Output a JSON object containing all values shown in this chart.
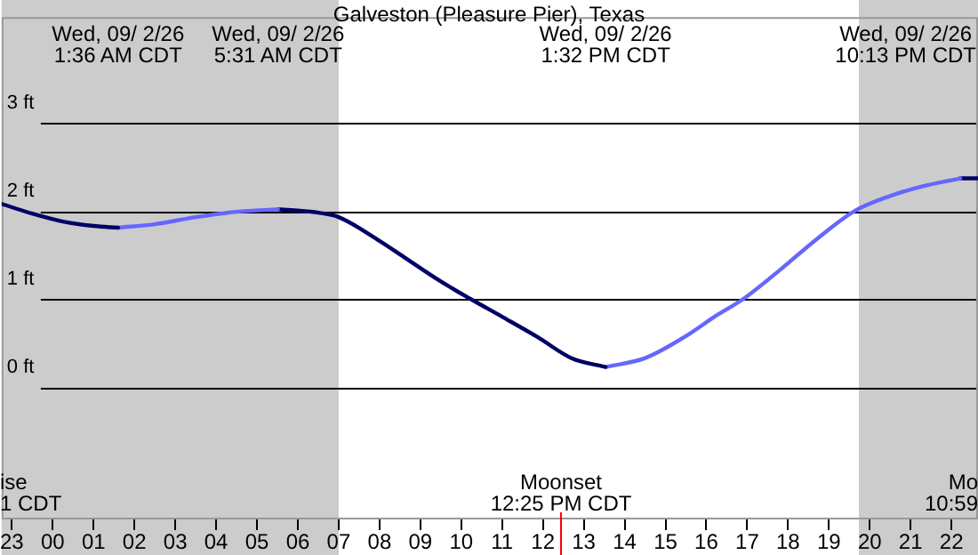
{
  "chart_data": {
    "type": "line",
    "title": "Galveston (Pleasure Pier), Texas",
    "xlim": [
      "--09-01T22:45",
      "--09-02T22:39"
    ],
    "ylim": [
      -1.5,
      4.2
    ],
    "xticks": [
      {
        "value": "--09-01T23:00",
        "label": "23"
      },
      {
        "value": "--09-02T00:00",
        "label": "00"
      },
      {
        "value": "--09-02T01:00",
        "label": "01"
      },
      {
        "value": "--09-02T02:00",
        "label": "02"
      },
      {
        "value": "--09-02T03:00",
        "label": "03"
      },
      {
        "value": "--09-02T04:00",
        "label": "04"
      },
      {
        "value": "--09-02T05:00",
        "label": "05"
      },
      {
        "value": "--09-02T06:00",
        "label": "06"
      },
      {
        "value": "--09-02T07:00",
        "label": "07"
      },
      {
        "value": "--09-02T08:00",
        "label": "08"
      },
      {
        "value": "--09-02T09:00",
        "label": "09"
      },
      {
        "value": "--09-02T10:00",
        "label": "10"
      },
      {
        "value": "--09-02T11:00",
        "label": "11"
      },
      {
        "value": "--09-02T12:00",
        "label": "12"
      },
      {
        "value": "--09-02T13:00",
        "label": "13"
      },
      {
        "value": "--09-02T14:00",
        "label": "14"
      },
      {
        "value": "--09-02T15:00",
        "label": "15"
      },
      {
        "value": "--09-02T16:00",
        "label": "16"
      },
      {
        "value": "--09-02T17:00",
        "label": "17"
      },
      {
        "value": "--09-02T18:00",
        "label": "18"
      },
      {
        "value": "--09-02T19:00",
        "label": "19"
      },
      {
        "value": "--09-02T20:00",
        "label": "20"
      },
      {
        "value": "--09-02T21:00",
        "label": "21"
      },
      {
        "value": "--09-02T22:00",
        "label": "22"
      }
    ],
    "yticks": [
      {
        "value": 0,
        "label": "0 ft"
      },
      {
        "value": 1,
        "label": "1 ft"
      },
      {
        "value": 2,
        "label": "2 ft"
      },
      {
        "value": 3,
        "label": "3 ft"
      }
    ],
    "grid": "y",
    "legend": false,
    "marker": "none",
    "line_style": "solid",
    "series": [
      {
        "color": "#000066",
        "x": [
          "--09-01T22:45",
          "--09-01T23:30",
          "--09-02T00:15",
          "--09-02T01:00",
          "--09-02T01:36"
        ],
        "values": [
          2.08,
          1.97,
          1.88,
          1.83,
          1.81
        ]
      },
      {
        "color": "#6666ff",
        "x": [
          "--09-02T01:36",
          "--09-02T02:30",
          "--09-02T03:30",
          "--09-02T04:30",
          "--09-02T05:31"
        ],
        "values": [
          1.81,
          1.85,
          1.93,
          1.99,
          2.02
        ]
      },
      {
        "color": "#000066",
        "x": [
          "--09-02T05:31",
          "--09-02T06:30",
          "--09-02T07:00",
          "--09-02T08:00",
          "--09-02T08:39",
          "--09-02T09:30",
          "--09-02T10:14",
          "--09-02T11:00",
          "--09-02T11:52",
          "--09-02T12:42",
          "--09-02T13:32"
        ],
        "values": [
          2.02,
          1.98,
          1.93,
          1.66,
          1.46,
          1.2,
          1.0,
          0.8,
          0.57,
          0.33,
          0.23
        ]
      },
      {
        "color": "#6666ff",
        "x": [
          "--09-02T13:32",
          "--09-02T14:30",
          "--09-02T15:30",
          "--09-02T16:12",
          "--09-02T16:54",
          "--09-02T17:48",
          "--09-02T18:42",
          "--09-02T19:38",
          "--09-02T20:30",
          "--09-02T21:18",
          "--09-02T22:13"
        ],
        "values": [
          0.23,
          0.33,
          0.58,
          0.8,
          1.0,
          1.33,
          1.68,
          2.0,
          2.17,
          2.28,
          2.37
        ]
      },
      {
        "color": "#000066",
        "x": [
          "--09-02T22:13",
          "--09-02T22:39"
        ],
        "values": [
          2.37,
          2.37
        ]
      }
    ],
    "bands": [
      {
        "axis": "x",
        "from": "--09-01T22:45",
        "to": "--09-02T07:00",
        "color": "#cccccc"
      },
      {
        "axis": "x",
        "from": "--09-02T19:44",
        "to": "--09-02T22:39",
        "color": "#cccccc"
      }
    ],
    "ref_lines": [
      {
        "axis": "x",
        "value": "--09-02T12:25",
        "label": "Moonset\n12:25 PM CDT",
        "color": "#ff0000"
      }
    ],
    "annotations": [
      "Wed, 09/ 2/26\n1:36 AM CDT",
      "Wed, 09/ 2/26\n5:31 AM CDT",
      "Wed, 09/ 2/26\n1:32 PM CDT",
      "Wed, 09/ 2/26\n10:13 PM CDT",
      "ise\n1 CDT",
      "Mo\n10:59"
    ]
  }
}
